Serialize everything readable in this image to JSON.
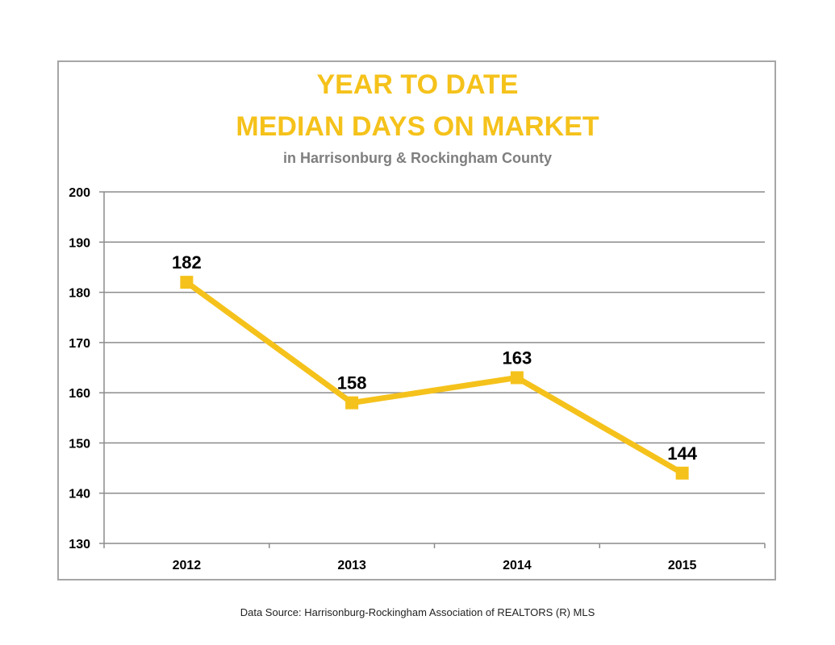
{
  "chart_data": {
    "type": "line",
    "title": [
      "YEAR TO DATE",
      "MEDIAN DAYS ON MARKET"
    ],
    "subtitle": "in Harrisonburg  & Rockingham County",
    "categories": [
      "2012",
      "2013",
      "2014",
      "2015"
    ],
    "values": [
      182,
      158,
      163,
      144
    ],
    "data_labels": [
      "182",
      "158",
      "163",
      "144"
    ],
    "y_ticks": [
      "200",
      "190",
      "180",
      "170",
      "160",
      "150",
      "140",
      "130"
    ],
    "ylim": [
      130,
      200
    ],
    "grid": true,
    "legend": "none",
    "line_color": "#f5c21b",
    "grid_color": "#8c8c8c"
  },
  "footer": {
    "source": "Data Source: Harrisonburg-Rockingham Association of REALTORS (R) MLS"
  }
}
